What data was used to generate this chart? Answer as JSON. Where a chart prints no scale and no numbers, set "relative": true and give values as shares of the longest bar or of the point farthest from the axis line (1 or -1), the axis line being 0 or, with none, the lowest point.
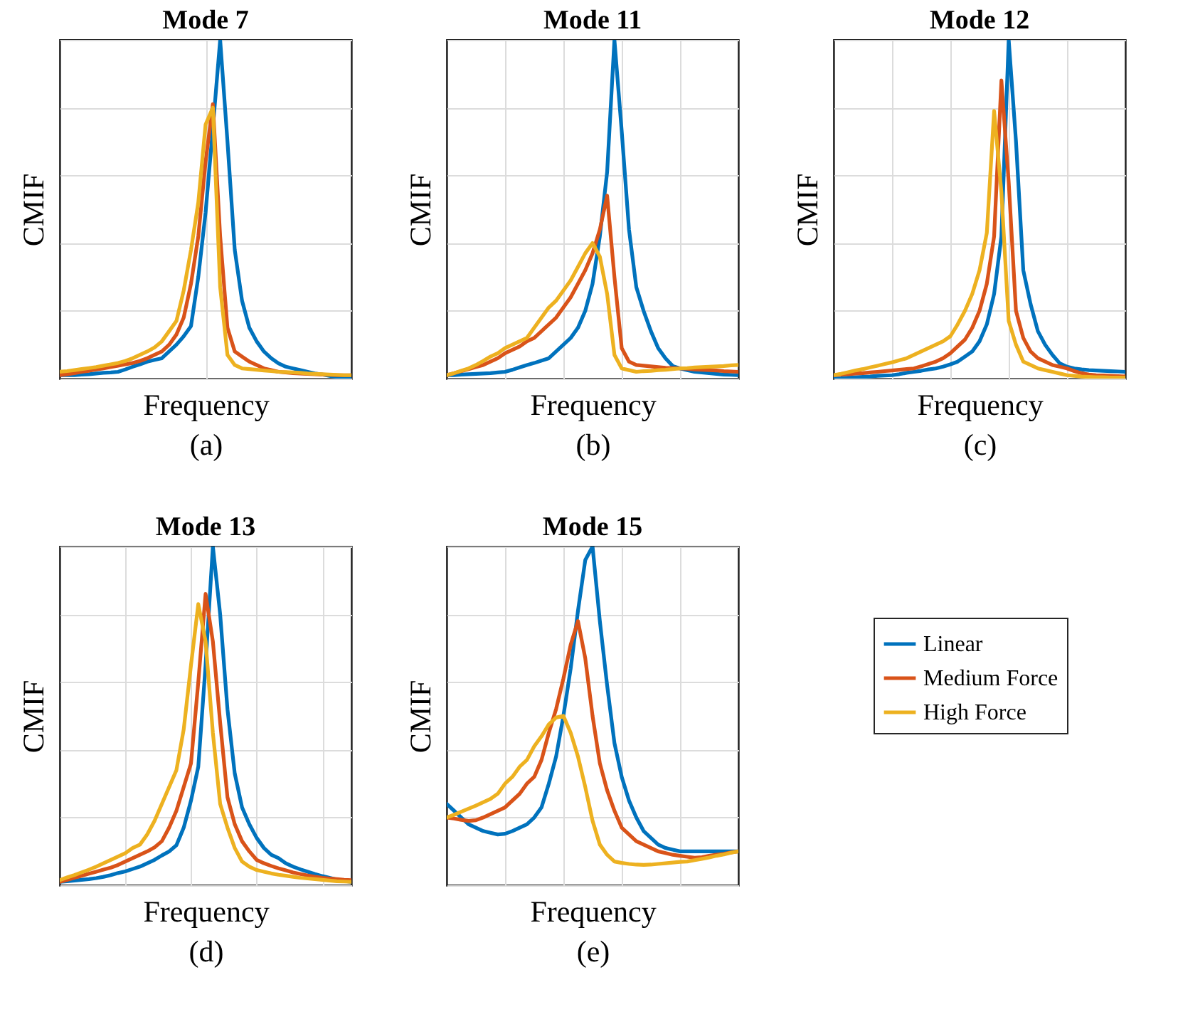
{
  "chart_data": [
    {
      "type": "line",
      "title": "Mode 7",
      "xlabel": "Frequency",
      "ylabel": "CMIF",
      "annotations": [
        "(a)"
      ],
      "relative": true,
      "grid": true,
      "legend": false,
      "categories": [
        null,
        null,
        null,
        null,
        null,
        null,
        null,
        null,
        null,
        null,
        null,
        null,
        null,
        null,
        null,
        null,
        null,
        null,
        null,
        null,
        null,
        null,
        null,
        null,
        null,
        null,
        null,
        null,
        null,
        null,
        null,
        null,
        null,
        null,
        null,
        null,
        null,
        null,
        null,
        null,
        null
      ],
      "series": [
        {
          "color": "#0072bd",
          "values": [
            0.01,
            0.01,
            0.01,
            0.012,
            0.013,
            0.015,
            0.017,
            0.018,
            0.02,
            0.027,
            0.035,
            0.042,
            0.05,
            0.055,
            0.06,
            0.08,
            0.1,
            0.125,
            0.155,
            0.3,
            0.49,
            0.74,
            1,
            0.7,
            0.38,
            0.23,
            0.15,
            0.11,
            0.08,
            0.06,
            0.045,
            0.035,
            0.03,
            0.025,
            0.02,
            0.015,
            0.012,
            0.008,
            0.005,
            0.003,
            0
          ]
        },
        {
          "color": "#d95319",
          "values": [
            0.01,
            0.013,
            0.016,
            0.02,
            0.023,
            0.027,
            0.03,
            0.034,
            0.038,
            0.042,
            0.046,
            0.052,
            0.06,
            0.07,
            0.08,
            0.1,
            0.13,
            0.18,
            0.28,
            0.42,
            0.64,
            0.81,
            0.42,
            0.15,
            0.08,
            0.065,
            0.05,
            0.04,
            0.03,
            0.025,
            0.02,
            0.018,
            0.016,
            0.015,
            0.014,
            0.013,
            0.012,
            0.011,
            0.01,
            0.01,
            0.01
          ]
        },
        {
          "color": "#edb120",
          "values": [
            0.02,
            0.022,
            0.025,
            0.028,
            0.031,
            0.034,
            0.038,
            0.042,
            0.046,
            0.052,
            0.06,
            0.07,
            0.08,
            0.092,
            0.11,
            0.14,
            0.17,
            0.26,
            0.38,
            0.52,
            0.75,
            0.8,
            0.27,
            0.07,
            0.04,
            0.03,
            0.028,
            0.026,
            0.024,
            0.022,
            0.02,
            0.019,
            0.018,
            0.017,
            0.015,
            0.014,
            0.013,
            0.012,
            0.011,
            0.01,
            0.01
          ]
        }
      ]
    },
    {
      "type": "line",
      "title": "Mode 11",
      "xlabel": "Frequency",
      "ylabel": "CMIF",
      "annotations": [
        "(b)"
      ],
      "relative": true,
      "grid": true,
      "legend": false,
      "categories": [
        null,
        null,
        null,
        null,
        null,
        null,
        null,
        null,
        null,
        null,
        null,
        null,
        null,
        null,
        null,
        null,
        null,
        null,
        null,
        null,
        null,
        null,
        null,
        null,
        null,
        null,
        null,
        null,
        null,
        null,
        null,
        null,
        null,
        null,
        null,
        null,
        null,
        null,
        null,
        null,
        null
      ],
      "series": [
        {
          "color": "#0072bd",
          "values": [
            0.01,
            0.01,
            0.012,
            0.013,
            0.014,
            0.015,
            0.016,
            0.018,
            0.02,
            0.026,
            0.033,
            0.04,
            0.046,
            0.053,
            0.06,
            0.08,
            0.1,
            0.12,
            0.15,
            0.2,
            0.28,
            0.42,
            0.61,
            1,
            0.73,
            0.44,
            0.27,
            0.2,
            0.14,
            0.09,
            0.06,
            0.037,
            0.03,
            0.025,
            0.02,
            0.018,
            0.016,
            0.014,
            0.012,
            0.011,
            0.01
          ]
        },
        {
          "color": "#d95319",
          "values": [
            0.01,
            0.016,
            0.022,
            0.028,
            0.034,
            0.04,
            0.05,
            0.06,
            0.075,
            0.085,
            0.095,
            0.11,
            0.12,
            0.14,
            0.16,
            0.18,
            0.21,
            0.24,
            0.28,
            0.32,
            0.37,
            0.44,
            0.54,
            0.3,
            0.09,
            0.05,
            0.04,
            0.038,
            0.036,
            0.034,
            0.032,
            0.031,
            0.03,
            0.029,
            0.027,
            0.026,
            0.025,
            0.024,
            0.022,
            0.021,
            0.02
          ]
        },
        {
          "color": "#edb120",
          "values": [
            0.01,
            0.016,
            0.023,
            0.03,
            0.04,
            0.052,
            0.065,
            0.075,
            0.09,
            0.1,
            0.11,
            0.12,
            0.15,
            0.18,
            0.21,
            0.23,
            0.26,
            0.29,
            0.33,
            0.37,
            0.4,
            0.36,
            0.25,
            0.07,
            0.03,
            0.025,
            0.02,
            0.022,
            0.023,
            0.025,
            0.026,
            0.028,
            0.03,
            0.031,
            0.033,
            0.034,
            0.035,
            0.036,
            0.037,
            0.039,
            0.04
          ]
        }
      ]
    },
    {
      "type": "line",
      "title": "Mode 12",
      "xlabel": "Frequency",
      "ylabel": "CMIF",
      "annotations": [
        "(c)"
      ],
      "relative": true,
      "grid": true,
      "legend": false,
      "categories": [
        null,
        null,
        null,
        null,
        null,
        null,
        null,
        null,
        null,
        null,
        null,
        null,
        null,
        null,
        null,
        null,
        null,
        null,
        null,
        null,
        null,
        null,
        null,
        null,
        null,
        null,
        null,
        null,
        null,
        null,
        null,
        null,
        null,
        null,
        null,
        null,
        null,
        null,
        null,
        null,
        null
      ],
      "series": [
        {
          "color": "#0072bd",
          "values": [
            0,
            0.001,
            0.003,
            0.004,
            0.005,
            0.006,
            0.008,
            0.009,
            0.01,
            0.013,
            0.017,
            0.02,
            0.023,
            0.027,
            0.03,
            0.035,
            0.042,
            0.05,
            0.065,
            0.08,
            0.11,
            0.16,
            0.25,
            0.42,
            1,
            0.7,
            0.32,
            0.22,
            0.14,
            0.1,
            0.07,
            0.045,
            0.035,
            0.03,
            0.027,
            0.025,
            0.024,
            0.023,
            0.022,
            0.021,
            0.02
          ]
        },
        {
          "color": "#d95319",
          "values": [
            0.01,
            0.012,
            0.013,
            0.015,
            0.016,
            0.018,
            0.02,
            0.022,
            0.024,
            0.026,
            0.028,
            0.03,
            0.036,
            0.043,
            0.05,
            0.06,
            0.075,
            0.095,
            0.115,
            0.15,
            0.2,
            0.28,
            0.42,
            0.88,
            0.58,
            0.2,
            0.12,
            0.08,
            0.06,
            0.05,
            0.04,
            0.035,
            0.03,
            0.022,
            0.016,
            0.012,
            0.01,
            0.009,
            0.008,
            0.007,
            0.006
          ]
        },
        {
          "color": "#edb120",
          "values": [
            0.01,
            0.014,
            0.019,
            0.024,
            0.028,
            0.033,
            0.038,
            0.043,
            0.048,
            0.054,
            0.06,
            0.07,
            0.08,
            0.09,
            0.1,
            0.11,
            0.125,
            0.16,
            0.2,
            0.25,
            0.32,
            0.43,
            0.79,
            0.55,
            0.17,
            0.1,
            0.05,
            0.04,
            0.03,
            0.025,
            0.02,
            0.015,
            0.01,
            0.008,
            0.006,
            0.005,
            0.004,
            0.004,
            0.003,
            0.003,
            0.003
          ]
        }
      ]
    },
    {
      "type": "line",
      "title": "Mode 13",
      "xlabel": "Frequency",
      "ylabel": "CMIF",
      "annotations": [
        "(d)"
      ],
      "relative": true,
      "grid": true,
      "legend": false,
      "categories": [
        null,
        null,
        null,
        null,
        null,
        null,
        null,
        null,
        null,
        null,
        null,
        null,
        null,
        null,
        null,
        null,
        null,
        null,
        null,
        null,
        null,
        null,
        null,
        null,
        null,
        null,
        null,
        null,
        null,
        null,
        null,
        null,
        null,
        null,
        null,
        null,
        null,
        null,
        null,
        null,
        null
      ],
      "series": [
        {
          "color": "#0072bd",
          "values": [
            0.01,
            0.012,
            0.014,
            0.016,
            0.018,
            0.021,
            0.025,
            0.03,
            0.036,
            0.041,
            0.048,
            0.055,
            0.065,
            0.075,
            0.088,
            0.1,
            0.118,
            0.17,
            0.25,
            0.35,
            0.65,
            1,
            0.8,
            0.52,
            0.33,
            0.23,
            0.18,
            0.14,
            0.11,
            0.09,
            0.08,
            0.065,
            0.055,
            0.047,
            0.04,
            0.033,
            0.027,
            0.022,
            0.017,
            0.013,
            0.01
          ]
        },
        {
          "color": "#d95319",
          "values": [
            0.01,
            0.016,
            0.022,
            0.028,
            0.034,
            0.04,
            0.046,
            0.052,
            0.06,
            0.07,
            0.08,
            0.09,
            0.1,
            0.112,
            0.13,
            0.17,
            0.22,
            0.29,
            0.36,
            0.6,
            0.86,
            0.72,
            0.48,
            0.26,
            0.18,
            0.13,
            0.1,
            0.075,
            0.065,
            0.057,
            0.05,
            0.044,
            0.038,
            0.033,
            0.029,
            0.025,
            0.022,
            0.02,
            0.018,
            0.016,
            0.015
          ]
        },
        {
          "color": "#edb120",
          "values": [
            0.015,
            0.023,
            0.03,
            0.038,
            0.046,
            0.055,
            0.065,
            0.075,
            0.085,
            0.095,
            0.11,
            0.12,
            0.15,
            0.19,
            0.24,
            0.29,
            0.34,
            0.46,
            0.65,
            0.83,
            0.72,
            0.45,
            0.24,
            0.17,
            0.11,
            0.07,
            0.055,
            0.045,
            0.04,
            0.035,
            0.031,
            0.028,
            0.025,
            0.022,
            0.02,
            0.018,
            0.016,
            0.014,
            0.012,
            0.011,
            0.01
          ]
        }
      ]
    },
    {
      "type": "line",
      "title": "Mode 15",
      "xlabel": "Frequency",
      "ylabel": "CMIF",
      "annotations": [
        "(e)"
      ],
      "relative": true,
      "grid": true,
      "legend": "right",
      "categories": [
        null,
        null,
        null,
        null,
        null,
        null,
        null,
        null,
        null,
        null,
        null,
        null,
        null,
        null,
        null,
        null,
        null,
        null,
        null,
        null,
        null,
        null,
        null,
        null,
        null,
        null,
        null,
        null,
        null,
        null,
        null,
        null,
        null,
        null,
        null,
        null,
        null,
        null,
        null,
        null,
        null
      ],
      "series": [
        {
          "name": "Linear",
          "color": "#0072bd",
          "values": [
            0.24,
            0.22,
            0.2,
            0.18,
            0.17,
            0.16,
            0.155,
            0.15,
            0.152,
            0.16,
            0.17,
            0.18,
            0.2,
            0.23,
            0.3,
            0.38,
            0.5,
            0.64,
            0.81,
            0.96,
            1,
            0.78,
            0.59,
            0.42,
            0.32,
            0.25,
            0.2,
            0.16,
            0.14,
            0.12,
            0.11,
            0.105,
            0.1,
            0.1,
            0.1,
            0.1,
            0.1,
            0.1,
            0.1,
            0.1,
            0.1
          ]
        },
        {
          "name": "Medium Force",
          "color": "#d95319",
          "values": [
            0.2,
            0.197,
            0.193,
            0.19,
            0.192,
            0.2,
            0.21,
            0.22,
            0.23,
            0.25,
            0.27,
            0.3,
            0.32,
            0.37,
            0.45,
            0.52,
            0.61,
            0.71,
            0.78,
            0.67,
            0.5,
            0.36,
            0.28,
            0.22,
            0.17,
            0.15,
            0.13,
            0.12,
            0.11,
            0.1,
            0.095,
            0.09,
            0.087,
            0.084,
            0.081,
            0.083,
            0.087,
            0.09,
            0.093,
            0.097,
            0.1
          ]
        },
        {
          "name": "High Force",
          "color": "#edb120",
          "values": [
            0.2,
            0.208,
            0.217,
            0.226,
            0.235,
            0.245,
            0.255,
            0.27,
            0.3,
            0.32,
            0.35,
            0.37,
            0.41,
            0.44,
            0.475,
            0.495,
            0.5,
            0.45,
            0.38,
            0.29,
            0.19,
            0.12,
            0.09,
            0.07,
            0.066,
            0.063,
            0.061,
            0.06,
            0.061,
            0.063,
            0.065,
            0.067,
            0.069,
            0.07,
            0.074,
            0.078,
            0.082,
            0.087,
            0.091,
            0.096,
            0.1
          ]
        }
      ]
    }
  ]
}
